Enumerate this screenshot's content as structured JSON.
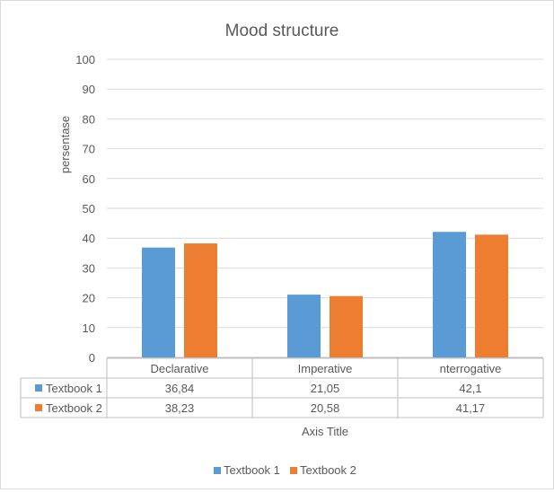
{
  "chart_data": {
    "type": "bar",
    "title": "Mood structure",
    "ylabel": "persentase",
    "xlabel": "Axis Title",
    "categories": [
      "Declarative",
      "Imperative",
      "nterrogative"
    ],
    "ylim": [
      0,
      100
    ],
    "yticks": [
      "0",
      "10",
      "20",
      "30",
      "40",
      "50",
      "60",
      "70",
      "80",
      "90",
      "100"
    ],
    "grid": true,
    "legend_position": "bottom",
    "series": [
      {
        "name": "Textbook 1",
        "color": "#5b9bd5",
        "values": [
          36.84,
          21.05,
          42.1
        ],
        "labels": [
          "36,84",
          "21,05",
          "42,1"
        ]
      },
      {
        "name": "Textbook 2",
        "color": "#ed7d31",
        "values": [
          38.23,
          20.58,
          41.17
        ],
        "labels": [
          "38,23",
          "20,58",
          "41,17"
        ]
      }
    ]
  }
}
